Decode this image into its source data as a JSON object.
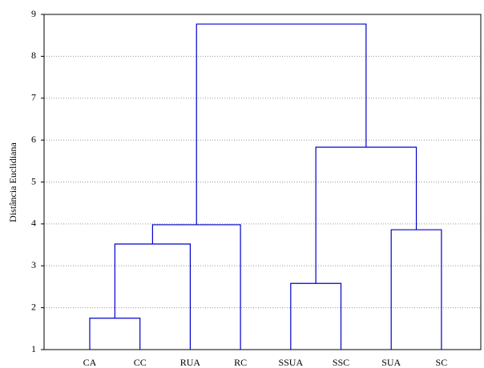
{
  "chart_data": {
    "type": "dendrogram",
    "y_label": "Distância Euclidiana",
    "leaves": [
      "CA",
      "CC",
      "RUA",
      "RC",
      "SSUA",
      "SSC",
      "SUA",
      "SC"
    ],
    "merges": [
      {
        "children": [
          0,
          1
        ],
        "height": 1.75
      },
      {
        "children": [
          8,
          2
        ],
        "height": 3.52
      },
      {
        "children": [
          9,
          3
        ],
        "height": 3.98
      },
      {
        "children": [
          4,
          5
        ],
        "height": 2.58
      },
      {
        "children": [
          6,
          7
        ],
        "height": 3.86
      },
      {
        "children": [
          11,
          12
        ],
        "height": 5.83
      },
      {
        "children": [
          10,
          13
        ],
        "height": 8.77
      }
    ],
    "color": "#0000cc",
    "ylim": [
      1,
      9
    ],
    "yticks": [
      1,
      2,
      3,
      4,
      5,
      6,
      7,
      8,
      9
    ],
    "grid": true
  }
}
